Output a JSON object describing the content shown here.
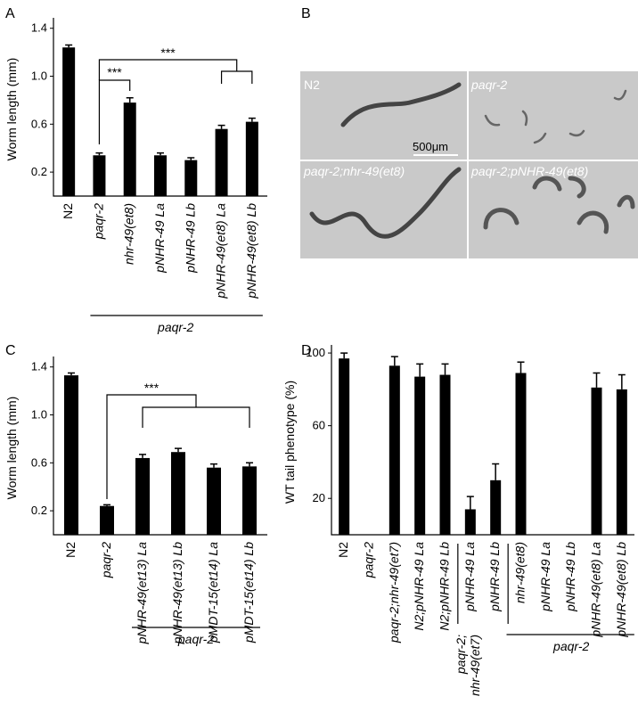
{
  "chart_data": [
    {
      "type": "bar",
      "panel": "A",
      "ylabel": "Worm length (mm)",
      "categories": [
        "N2",
        "paqr-2",
        "nhr-49(et8)",
        "pNHR-49 La",
        "pNHR-49 Lb",
        "pNHR-49(et8) La",
        "pNHR-49(et8) Lb"
      ],
      "values": [
        1.24,
        0.34,
        0.78,
        0.34,
        0.3,
        0.56,
        0.62
      ],
      "errors": [
        0.02,
        0.02,
        0.04,
        0.02,
        0.02,
        0.03,
        0.03
      ],
      "color": "#000000",
      "ylim": [
        0,
        1.45
      ],
      "yticks": [
        0.2,
        0.6,
        {
          "value": 1,
          "label": "1.0"
        },
        1.4
      ],
      "annotations": [
        "***",
        "***"
      ],
      "group_label": "paqr-2"
    },
    {
      "type": "bar",
      "panel": "C",
      "ylabel": "Worm length (mm)",
      "categories": [
        "N2",
        "paqr-2",
        "pNHR-49(et13) La",
        "pNHR-49(et13) Lb",
        "pMDT-15(et14) La",
        "pMDT-15(et14) Lb"
      ],
      "values": [
        1.33,
        0.24,
        0.64,
        0.69,
        0.56,
        0.57
      ],
      "errors": [
        0.02,
        0.01,
        0.03,
        0.03,
        0.03,
        0.03
      ],
      "color": "#000000",
      "ylim": [
        0,
        1.45
      ],
      "yticks": [
        0.2,
        0.6,
        {
          "value": 1,
          "label": "1.0"
        },
        1.4
      ],
      "annotations": [
        "***"
      ],
      "group_label": "paqr-2"
    },
    {
      "type": "bar",
      "panel": "D",
      "ylabel": "WT tail phenotype (%)",
      "categories": [
        "N2",
        "paqr-2",
        "paqr-2;nhr-49(et7)",
        "N2;pNHR-49 La",
        "N2;pNHR-49 Lb",
        "pNHR-49 La",
        "pNHR-49 Lb",
        "nhr-49(et8)",
        "pNHR-49 La",
        "pNHR-49 Lb",
        "pNHR-49(et8) La",
        "pNHR-49(et8) Lb"
      ],
      "values": [
        97,
        0,
        93,
        87,
        88,
        14,
        30,
        89,
        0,
        0,
        81,
        80
      ],
      "errors": [
        3,
        null,
        5,
        7,
        6,
        7,
        9,
        6,
        null,
        null,
        8,
        8
      ],
      "color": "#000000",
      "ylim": [
        0,
        102
      ],
      "yticks": [
        20,
        60,
        100
      ],
      "subgroup_label": [
        "paqr-2;",
        "nhr-49(et7)"
      ],
      "group_label": "paqr-2"
    }
  ],
  "panel_b": {
    "label": "B",
    "images": [
      "N2",
      "paqr-2",
      "paqr-2;nhr-49(et8)",
      "paqr-2;pNHR-49(et8)"
    ],
    "scale_bar": "500μm"
  }
}
